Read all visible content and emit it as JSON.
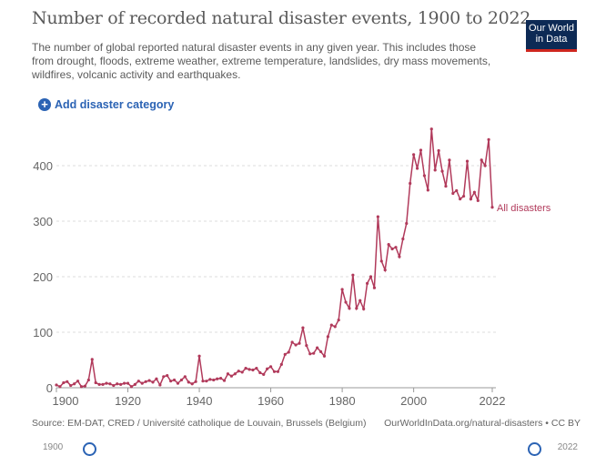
{
  "header": {
    "title": "Number of recorded natural disaster events, 1900 to 2022",
    "subtitle": "The number of global reported natural disaster events in any given year. This includes those from drought, floods, extreme weather, extreme temperature, landslides, dry mass movements, wildfires, volcanic activity and earthquakes.",
    "logo_text": "Our World in Data",
    "add_button": "Add disaster category",
    "add_icon": "plus-circle-icon"
  },
  "footer": {
    "source": "Source: EM-DAT, CRED / Université catholique de Louvain, Brussels (Belgium)",
    "url": "OurWorldInData.org/natural-disasters • CC BY",
    "timeline_start": "1900",
    "timeline_end": "2022"
  },
  "colors": {
    "line": "#b13a5b",
    "accent": "#2b63b4",
    "logo_bg": "#0d2a55",
    "logo_bar": "#ce261e"
  },
  "chart_data": {
    "type": "line",
    "title": "Number of recorded natural disaster events, 1900 to 2022",
    "xlabel": "",
    "ylabel": "",
    "xlim": [
      1900,
      2022
    ],
    "ylim": [
      0,
      470
    ],
    "x_ticks": [
      "1900",
      "1920",
      "1940",
      "1960",
      "1980",
      "2000",
      "2022"
    ],
    "y_ticks": [
      "0",
      "100",
      "200",
      "300",
      "400"
    ],
    "grid": "horizontal dotted",
    "series": [
      {
        "name": "All disasters",
        "start_year": 1900,
        "values": [
          5,
          2,
          9,
          11,
          4,
          7,
          12,
          2,
          3,
          14,
          51,
          9,
          6,
          6,
          8,
          7,
          4,
          7,
          6,
          8,
          8,
          2,
          6,
          12,
          8,
          11,
          13,
          10,
          16,
          5,
          20,
          22,
          12,
          14,
          8,
          14,
          20,
          10,
          7,
          11,
          57,
          12,
          12,
          15,
          14,
          16,
          17,
          13,
          25,
          21,
          25,
          30,
          28,
          35,
          33,
          32,
          35,
          27,
          24,
          34,
          38,
          29,
          29,
          42,
          60,
          64,
          82,
          77,
          80,
          108,
          76,
          61,
          62,
          72,
          65,
          57,
          92,
          113,
          110,
          122,
          177,
          154,
          143,
          203,
          143,
          157,
          142,
          188,
          200,
          180,
          308,
          228,
          212,
          258,
          250,
          253,
          236,
          268,
          296,
          368,
          420,
          395,
          428,
          382,
          356,
          466,
          392,
          427,
          390,
          363,
          410,
          350,
          355,
          340,
          345,
          408,
          340,
          352,
          337,
          410,
          400,
          447,
          325
        ]
      }
    ]
  }
}
